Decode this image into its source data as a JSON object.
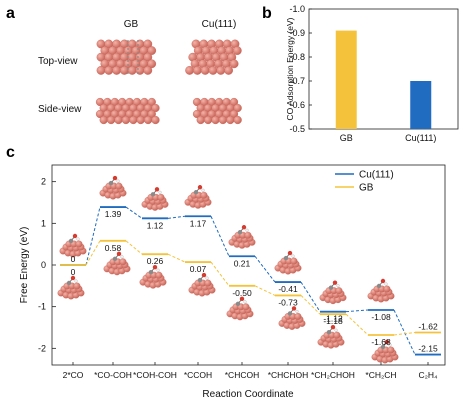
{
  "panels": {
    "a": {
      "label": "a",
      "col_headers": [
        "GB",
        "Cu(111)"
      ],
      "row_labels": [
        "Top-view",
        "Side-view"
      ]
    },
    "b": {
      "label": "b"
    },
    "c": {
      "label": "c"
    }
  },
  "colors": {
    "gb": "#f5c33b",
    "cu111": "#1f6cc0",
    "atom": "#e8877a",
    "atom_dark": "#c9665a",
    "carbon": "#8a8a8a",
    "oxygen": "#d63b2f",
    "hydrogen": "#f2f2f2"
  },
  "chart_data": [
    {
      "type": "bar",
      "panel": "b",
      "categories": [
        "GB",
        "Cu(111)"
      ],
      "values": [
        -0.91,
        -0.7
      ],
      "ylabel": "CO Adsorption Energy (eV)",
      "ylim": [
        -1.0,
        -0.5
      ],
      "yticks": [
        "-1.0",
        "-0.9",
        "-0.8",
        "-0.7",
        "-0.6",
        "-0.5"
      ],
      "invert_y": true,
      "bar_colors": [
        "#f5c33b",
        "#1f6cc0"
      ]
    },
    {
      "type": "line",
      "panel": "c",
      "style": "energy-level-diagram",
      "categories": [
        "2*CO",
        "*CO-COH",
        "*COH-COH",
        "*CCOH",
        "*CHCOH",
        "*CHCHOH",
        "*CH₂CHOH",
        "*CH₂CH",
        "C₂H₄"
      ],
      "xlabel": "Reaction Coordinate",
      "ylabel": "Free Energy (eV)",
      "ylim": [
        -2.4,
        2.4
      ],
      "yticks": [
        "-2",
        "-1",
        "0",
        "1",
        "2"
      ],
      "legend_position": "top-right",
      "series": [
        {
          "name": "Cu(111)",
          "values": [
            0,
            1.39,
            1.12,
            1.17,
            0.21,
            -0.41,
            -1.12,
            -1.08,
            -2.15
          ],
          "labels": [
            "0",
            "1.39",
            "1.12",
            "1.17",
            "0.21",
            "-0.41",
            "-1.12",
            "-1.08",
            "-2.15"
          ]
        },
        {
          "name": "GB",
          "values": [
            0,
            0.58,
            0.26,
            0.07,
            -0.5,
            -0.73,
            -1.18,
            -1.68,
            -1.62
          ],
          "labels": [
            "0",
            "0.58",
            "0.26",
            "0.07",
            "-0.50",
            "-0.73",
            "-1.18",
            "-1.68",
            "-1.62"
          ]
        }
      ]
    }
  ]
}
